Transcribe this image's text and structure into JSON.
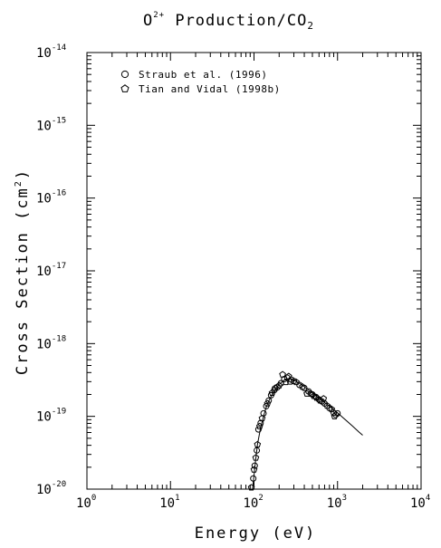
{
  "chart_data": {
    "type": "scatter",
    "title_main": "O",
    "title_sup": "2+",
    "title_rest": " Production/CO",
    "title_sub": "2",
    "xlabel": "Energy (eV)",
    "ylabel_main": "Cross Section (cm",
    "ylabel_sup": "2",
    "ylabel_end": ")",
    "xscale": "log",
    "yscale": "log",
    "xlim": [
      1,
      10000
    ],
    "ylim": [
      1e-20,
      1e-14
    ],
    "grid": false,
    "legend_position": "top-left",
    "x_ticks": [
      {
        "base": "10",
        "exp": "0",
        "value": 1
      },
      {
        "base": "10",
        "exp": "1",
        "value": 10
      },
      {
        "base": "10",
        "exp": "2",
        "value": 100
      },
      {
        "base": "10",
        "exp": "3",
        "value": 1000
      },
      {
        "base": "10",
        "exp": "4",
        "value": 10000
      }
    ],
    "y_ticks": [
      {
        "base": "10",
        "exp": "-20",
        "value": 1e-20
      },
      {
        "base": "10",
        "exp": "-19",
        "value": 1e-19
      },
      {
        "base": "10",
        "exp": "-18",
        "value": 1e-18
      },
      {
        "base": "10",
        "exp": "-17",
        "value": 1e-17
      },
      {
        "base": "10",
        "exp": "-16",
        "value": 1e-16
      },
      {
        "base": "10",
        "exp": "-15",
        "value": 1e-15
      },
      {
        "base": "10",
        "exp": "-14",
        "value": 1e-14
      }
    ],
    "series": [
      {
        "name": "Straub et al. (1996)",
        "marker": "circle",
        "points": [
          [
            98,
            1.4e-20
          ],
          [
            102,
            2.1e-20
          ],
          [
            108,
            3.4e-20
          ],
          [
            113,
            6.6e-20
          ],
          [
            120,
            8.1e-20
          ],
          [
            130,
            1.1e-19
          ],
          [
            140,
            1.38e-19
          ],
          [
            150,
            1.65e-19
          ],
          [
            160,
            1.95e-19
          ],
          [
            175,
            2.3e-19
          ],
          [
            190,
            2.5e-19
          ],
          [
            210,
            2.85e-19
          ],
          [
            230,
            3.25e-19
          ],
          [
            250,
            3.4e-19
          ],
          [
            280,
            3.2e-19
          ],
          [
            300,
            3.05e-19
          ],
          [
            350,
            2.7e-19
          ],
          [
            400,
            2.45e-19
          ],
          [
            450,
            2.2e-19
          ],
          [
            500,
            2e-19
          ],
          [
            550,
            1.85e-19
          ],
          [
            600,
            1.7e-19
          ],
          [
            650,
            1.6e-19
          ],
          [
            700,
            1.5e-19
          ],
          [
            800,
            1.3e-19
          ],
          [
            900,
            1.12e-19
          ],
          [
            950,
            1.05e-19
          ],
          [
            1000,
            1.1e-19
          ]
        ]
      },
      {
        "name": "Tian and Vidal (1998b)",
        "marker": "pentagon",
        "points": [
          [
            93,
            1.05e-20
          ],
          [
            100,
            1.85e-20
          ],
          [
            105,
            2.7e-20
          ],
          [
            110,
            4.1e-20
          ],
          [
            117,
            7.3e-20
          ],
          [
            125,
            9.4e-20
          ],
          [
            145,
            1.5e-19
          ],
          [
            165,
            2.1e-19
          ],
          [
            180,
            2.45e-19
          ],
          [
            200,
            2.65e-19
          ],
          [
            220,
            3.75e-19
          ],
          [
            240,
            2.95e-19
          ],
          [
            260,
            3.55e-19
          ],
          [
            270,
            3e-19
          ],
          [
            320,
            2.95e-19
          ],
          [
            380,
            2.55e-19
          ],
          [
            430,
            2.05e-19
          ],
          [
            480,
            2.05e-19
          ],
          [
            520,
            1.9e-19
          ],
          [
            560,
            1.8e-19
          ],
          [
            620,
            1.65e-19
          ],
          [
            680,
            1.75e-19
          ],
          [
            750,
            1.4e-19
          ],
          [
            850,
            1.25e-19
          ],
          [
            920,
            1e-19
          ]
        ]
      },
      {
        "name": "",
        "style": "line",
        "points": [
          [
            96,
            1e-20
          ],
          [
            100,
            1.55e-20
          ],
          [
            105,
            2.6e-20
          ],
          [
            110,
            4.1e-20
          ],
          [
            120,
            7e-20
          ],
          [
            130,
            1e-19
          ],
          [
            140,
            1.33e-19
          ],
          [
            150,
            1.62e-19
          ],
          [
            170,
            2.15e-19
          ],
          [
            200,
            2.75e-19
          ],
          [
            230,
            3.15e-19
          ],
          [
            260,
            3.3e-19
          ],
          [
            300,
            3.15e-19
          ],
          [
            350,
            2.85e-19
          ],
          [
            400,
            2.55e-19
          ],
          [
            500,
            2.1e-19
          ],
          [
            600,
            1.78e-19
          ],
          [
            700,
            1.55e-19
          ],
          [
            800,
            1.38e-19
          ],
          [
            1000,
            1.12e-19
          ],
          [
            1200,
            9.3e-20
          ],
          [
            1500,
            7.4e-20
          ],
          [
            1800,
            6.1e-20
          ],
          [
            2000,
            5.5e-20
          ]
        ]
      }
    ]
  }
}
